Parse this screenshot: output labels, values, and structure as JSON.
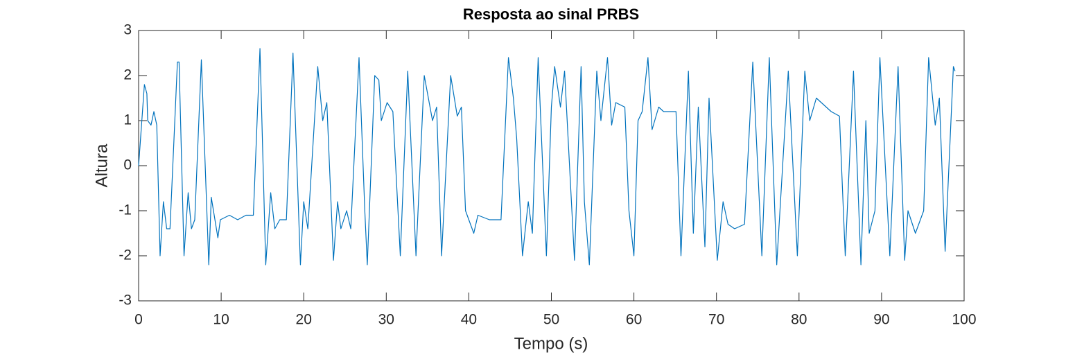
{
  "chart_data": {
    "type": "line",
    "title": "Resposta ao sinal PRBS",
    "x_label": "Tempo (s)",
    "y_label": "Altura",
    "xlim": [
      0,
      100
    ],
    "ylim": [
      -3,
      3
    ],
    "xticks": [
      0,
      10,
      20,
      30,
      40,
      50,
      60,
      70,
      80,
      90,
      100
    ],
    "yticks": [
      -3,
      -2,
      -1,
      0,
      1,
      2,
      3
    ],
    "grid": false,
    "series": [
      {
        "color": "#0072bd",
        "x": [
          0,
          0.7,
          1.0,
          1.1,
          1.5,
          1.85,
          2.2,
          2.6,
          3.0,
          3.4,
          3.8,
          4.7,
          4.9,
          5.5,
          6.0,
          6.4,
          6.8,
          7.6,
          8.5,
          8.8,
          9.6,
          9.9,
          11.0,
          12.0,
          13.0,
          13.9,
          14.7,
          15.4,
          16.0,
          16.5,
          17.1,
          17.9,
          18.7,
          19.6,
          20.0,
          20.5,
          21.7,
          22.3,
          22.8,
          23.6,
          24.1,
          24.5,
          25.2,
          25.7,
          26.7,
          27.4,
          27.7,
          28.6,
          29.1,
          29.4,
          30.1,
          30.8,
          31.7,
          32.6,
          33.6,
          34.6,
          35.6,
          36.1,
          36.7,
          37.8,
          38.6,
          39.1,
          39.6,
          40.6,
          41.1,
          42.5,
          43.9,
          44.8,
          45.4,
          45.8,
          46.5,
          47.2,
          47.7,
          48.4,
          49.4,
          50.0,
          50.4,
          51.1,
          51.6,
          52.8,
          53.6,
          54.0,
          54.6,
          55.5,
          56.0,
          56.8,
          57.3,
          57.8,
          58.9,
          59.4,
          60.0,
          60.5,
          61.0,
          61.7,
          62.2,
          63.0,
          63.6,
          65.1,
          65.7,
          66.6,
          67.2,
          67.8,
          68.6,
          69.1,
          70.1,
          70.8,
          71.4,
          72.2,
          73.4,
          74.4,
          75.5,
          76.4,
          77.3,
          78.7,
          79.8,
          80.7,
          81.3,
          82.1,
          83.9,
          84.9,
          85.6,
          86.6,
          87.5,
          88.1,
          88.5,
          89.2,
          89.8,
          91.0,
          92.0,
          92.8,
          93.2,
          94.1,
          95.1,
          95.7,
          96.5,
          97.0,
          97.7,
          98.7,
          98.9
        ],
        "values": [
          0,
          1.8,
          1.6,
          1.0,
          0.9,
          1.2,
          0.9,
          -2.0,
          -0.8,
          -1.4,
          -1.4,
          2.3,
          2.3,
          -2.0,
          -0.6,
          -1.4,
          -1.2,
          2.35,
          -2.2,
          -0.7,
          -1.6,
          -1.2,
          -1.1,
          -1.2,
          -1.1,
          -1.1,
          2.6,
          -2.2,
          -0.6,
          -1.4,
          -1.2,
          -1.2,
          2.5,
          -2.2,
          -0.8,
          -1.4,
          2.2,
          1.0,
          1.4,
          -2.1,
          -0.8,
          -1.4,
          -1.0,
          -1.4,
          2.4,
          -1.0,
          -2.2,
          2.0,
          1.9,
          1.0,
          1.4,
          1.2,
          -2.0,
          2.1,
          -2.0,
          2.0,
          1.0,
          1.3,
          -2.0,
          2.0,
          1.1,
          1.3,
          -1.0,
          -1.5,
          -1.1,
          -1.2,
          -1.2,
          2.4,
          1.5,
          0.6,
          -2.0,
          -0.8,
          -1.5,
          2.4,
          -2.0,
          1.3,
          2.2,
          1.3,
          2.1,
          -2.1,
          2.2,
          -0.8,
          -2.2,
          2.1,
          1.0,
          2.4,
          0.9,
          1.4,
          1.3,
          -1.0,
          -2.0,
          1.0,
          1.2,
          2.4,
          0.8,
          1.3,
          1.2,
          1.2,
          -2.0,
          2.1,
          -1.5,
          1.3,
          -1.8,
          1.5,
          -2.1,
          -0.8,
          -1.3,
          -1.4,
          -1.3,
          2.3,
          -2.0,
          2.4,
          -2.2,
          2.1,
          -2.0,
          2.1,
          1.0,
          1.5,
          1.2,
          1.1,
          -2.0,
          2.1,
          -2.2,
          1.0,
          -1.5,
          -1.0,
          2.4,
          -2.0,
          2.2,
          -2.1,
          -1.0,
          -1.5,
          -1.0,
          2.4,
          0.9,
          1.5,
          -1.9,
          2.2,
          2.1
        ]
      }
    ]
  }
}
